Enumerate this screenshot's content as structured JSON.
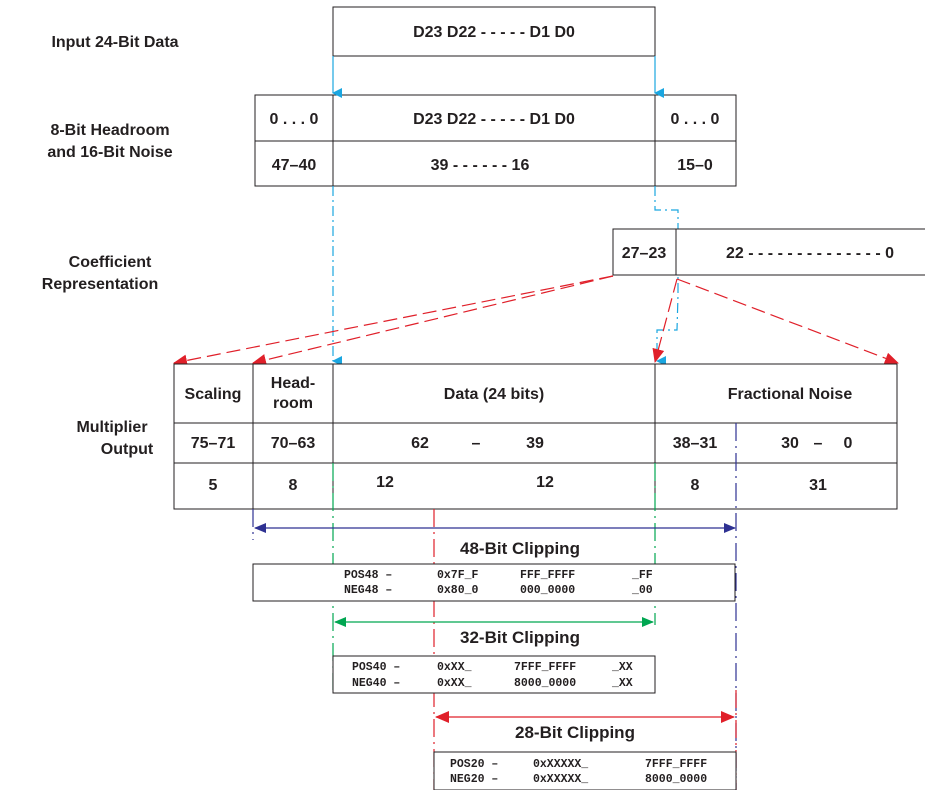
{
  "colors": {
    "ink": "#231f20",
    "cyan": "#1aa6e0",
    "red": "#e0202a",
    "blue": "#2e3192",
    "green": "#00a651"
  },
  "labels": {
    "input": "Input 24-Bit Data",
    "headroom_line1": "8-Bit Headroom",
    "headroom_line2": "and 16-Bit Noise",
    "coef_line1": "Coefficient",
    "coef_line2": "Representation",
    "mult_line1": "Multiplier",
    "mult_line2": "Output"
  },
  "input_box": {
    "text": "D23  D22 - - - - -  D1   D0"
  },
  "headroom_box": {
    "left_top": "0 . . . 0",
    "mid_top": "D23  D22 - - - - -  D1   D0",
    "right_top": "0 . . . 0",
    "left_bottom": "47–40",
    "mid_bottom": "39 - - - - - - 16",
    "right_bottom": "15–0"
  },
  "coef_box": {
    "left": "27–23",
    "right": "22 - - - - - - - - - - - - - - 0"
  },
  "mult_box": {
    "h_scaling": "Scaling",
    "h_head1": "Head-",
    "h_head2": "room",
    "h_data": "Data (24 bits)",
    "h_frac": "Fractional Noise",
    "r1_c1": "75–71",
    "r1_c2": "70–63",
    "r1_c3a": "62",
    "r1_c3b": "–",
    "r1_c3c": "39",
    "r1_c4": "38–31",
    "r1_c5a": "30",
    "r1_c5b": "–",
    "r1_c5c": "0",
    "r2_c1": "5",
    "r2_c2": "8",
    "r2_c3": "12",
    "r2_c4": "12",
    "r2_c5": "8",
    "r2_c6": "31"
  },
  "clip48": {
    "title": "48-Bit Clipping",
    "pos_name": "POS48 –",
    "pos_a": "0x7F_F",
    "pos_b": "FFF_FFFF",
    "pos_c": "_FF",
    "neg_name": "NEG48 –",
    "neg_a": "0x80_0",
    "neg_b": "000_0000",
    "neg_c": "_00"
  },
  "clip32": {
    "title": "32-Bit Clipping",
    "pos_name": "POS40 –",
    "pos_a": "0xXX_",
    "pos_b": "7FFF_FFFF",
    "pos_c": "_XX",
    "neg_name": "NEG40 –",
    "neg_a": "0xXX_",
    "neg_b": "8000_0000",
    "neg_c": "_XX"
  },
  "clip28": {
    "title": "28-Bit Clipping",
    "pos_name": "POS20 –",
    "pos_a": "0xXXXXX_",
    "pos_b": "7FFF_FFFF",
    "neg_name": "NEG20 –",
    "neg_a": "0xXXXXX_",
    "neg_b": "8000_0000"
  }
}
